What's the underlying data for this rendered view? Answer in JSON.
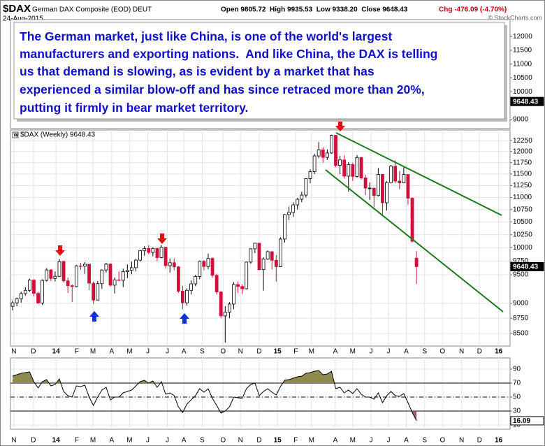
{
  "header": {
    "symbol": "$DAX",
    "name": "German DAX Composite (EOD) DEUT",
    "date": "24-Aug-2015",
    "ohlc": "Open 9805.72  High 9935.53  Low 9338.20  Close 9648.43",
    "change": "Chg -476.09 (-4.70%)",
    "copyright": "© StockCharts.com"
  },
  "annotation": [
    "The German market, just like China, is one of the world's largest",
    "manufacturers and exporting nations.  And like China, the DAX is telling",
    "us that demand is slowing, as is evident by a market that has",
    "experienced a similar blow-off and has since retraced more than 20%,",
    "putting it firmly in bear market territory."
  ],
  "chart_data": [
    {
      "type": "candlestick",
      "legend": "$DAX (Weekly) 9648.43",
      "ylog": true,
      "grid": true,
      "up_color": "#ffffff",
      "down_color": "#d0103a",
      "ylim": [
        8300,
        12500
      ],
      "yticks": [
        8500,
        8750,
        9000,
        9500,
        9750,
        10000,
        10250,
        10500,
        10750,
        11000,
        11250,
        11500,
        11750,
        12000,
        12250
      ],
      "xlim": [
        -0.5,
        117
      ],
      "xticks": [
        {
          "value": 0.3,
          "label": "N"
        },
        {
          "value": 4.9,
          "label": "D"
        },
        {
          "value": 10.2,
          "label": "14"
        },
        {
          "value": 15.1,
          "label": "F"
        },
        {
          "value": 18.9,
          "label": "M"
        },
        {
          "value": 23.3,
          "label": "A"
        },
        {
          "value": 27.5,
          "label": "M"
        },
        {
          "value": 31.8,
          "label": "J"
        },
        {
          "value": 36.4,
          "label": "J"
        },
        {
          "value": 40.3,
          "label": "A"
        },
        {
          "value": 44.6,
          "label": "S"
        },
        {
          "value": 49.5,
          "label": "O"
        },
        {
          "value": 53.6,
          "label": "N"
        },
        {
          "value": 58,
          "label": "D"
        },
        {
          "value": 62.3,
          "label": "15"
        },
        {
          "value": 66.6,
          "label": "F"
        },
        {
          "value": 70.3,
          "label": "M"
        },
        {
          "value": 75.9,
          "label": "A"
        },
        {
          "value": 80,
          "label": "M"
        },
        {
          "value": 84.3,
          "label": "J"
        },
        {
          "value": 88.4,
          "label": "J"
        },
        {
          "value": 92.6,
          "label": "A"
        },
        {
          "value": 96.9,
          "label": "S"
        },
        {
          "value": 101.1,
          "label": "O"
        },
        {
          "value": 105.6,
          "label": "N"
        },
        {
          "value": 109.8,
          "label": "D"
        },
        {
          "value": 114.3,
          "label": "16"
        }
      ],
      "ohlc": [
        [
          8950,
          9050,
          8880,
          9009
        ],
        [
          9009,
          9100,
          8950,
          9078
        ],
        [
          9078,
          9200,
          9010,
          9168
        ],
        [
          9168,
          9280,
          9130,
          9225
        ],
        [
          9225,
          9430,
          9200,
          9405
        ],
        [
          9405,
          9420,
          9120,
          9172
        ],
        [
          9172,
          9200,
          8990,
          9006
        ],
        [
          9006,
          9420,
          8970,
          9400
        ],
        [
          9400,
          9620,
          9380,
          9589
        ],
        [
          9589,
          9600,
          9390,
          9435
        ],
        [
          9435,
          9560,
          9380,
          9473
        ],
        [
          9473,
          9790,
          9460,
          9742
        ],
        [
          9742,
          9760,
          9360,
          9392
        ],
        [
          9392,
          9450,
          9180,
          9306
        ],
        [
          9306,
          9330,
          9020,
          9289
        ],
        [
          9289,
          9680,
          9280,
          9662
        ],
        [
          9662,
          9720,
          9590,
          9656
        ],
        [
          9656,
          9730,
          9520,
          9692
        ],
        [
          9692,
          9700,
          9230,
          9350
        ],
        [
          9350,
          9380,
          8990,
          9056
        ],
        [
          9056,
          9390,
          9050,
          9342
        ],
        [
          9342,
          9600,
          9250,
          9587
        ],
        [
          9587,
          9720,
          9540,
          9695
        ],
        [
          9695,
          9710,
          9290,
          9315
        ],
        [
          9315,
          9450,
          9170,
          9409
        ],
        [
          9409,
          9560,
          9390,
          9401
        ],
        [
          9401,
          9610,
          9280,
          9556
        ],
        [
          9556,
          9690,
          9440,
          9581
        ],
        [
          9581,
          9740,
          9510,
          9629
        ],
        [
          9629,
          9790,
          9560,
          9768
        ],
        [
          9768,
          9960,
          9740,
          9943
        ],
        [
          9943,
          10030,
          9850,
          9987
        ],
        [
          9987,
          10050,
          9880,
          9912
        ],
        [
          9912,
          10010,
          9840,
          9987
        ],
        [
          9987,
          10000,
          9750,
          9815
        ],
        [
          9815,
          10050,
          9800,
          10009
        ],
        [
          10009,
          10020,
          9610,
          9666
        ],
        [
          9666,
          9800,
          9540,
          9720
        ],
        [
          9720,
          9800,
          9580,
          9644
        ],
        [
          9644,
          9660,
          9180,
          9210
        ],
        [
          9210,
          9300,
          8900,
          9009
        ],
        [
          9009,
          9260,
          8960,
          9225
        ],
        [
          9225,
          9400,
          9150,
          9339
        ],
        [
          9339,
          9500,
          9300,
          9470
        ],
        [
          9470,
          9760,
          9420,
          9747
        ],
        [
          9747,
          9770,
          9580,
          9651
        ],
        [
          9651,
          9890,
          9600,
          9799
        ],
        [
          9799,
          9820,
          9450,
          9490
        ],
        [
          9490,
          9520,
          9150,
          9195
        ],
        [
          9195,
          9210,
          8750,
          8788
        ],
        [
          8788,
          8950,
          8355,
          8850
        ],
        [
          8850,
          9020,
          8750,
          8988
        ],
        [
          8988,
          9370,
          8900,
          9326
        ],
        [
          9326,
          9380,
          9180,
          9291
        ],
        [
          9291,
          9330,
          9160,
          9252
        ],
        [
          9252,
          9740,
          9240,
          9732
        ],
        [
          9732,
          9990,
          9700,
          9980
        ],
        [
          9980,
          10090,
          9900,
          10087
        ],
        [
          10087,
          10090,
          9580,
          9594
        ],
        [
          9594,
          9820,
          9220,
          9787
        ],
        [
          9787,
          9950,
          9770,
          9927
        ],
        [
          9927,
          9930,
          9600,
          9765
        ],
        [
          9765,
          9860,
          9380,
          9648
        ],
        [
          9648,
          10200,
          9640,
          10167
        ],
        [
          10167,
          10660,
          10100,
          10649
        ],
        [
          10649,
          10810,
          10540,
          10694
        ],
        [
          10694,
          10900,
          10600,
          10846
        ],
        [
          10846,
          10990,
          10750,
          10963
        ],
        [
          10963,
          11120,
          10900,
          11050
        ],
        [
          11050,
          11410,
          11000,
          11402
        ],
        [
          11402,
          11600,
          11300,
          11551
        ],
        [
          11551,
          11950,
          11500,
          11901
        ],
        [
          11901,
          12220,
          11850,
          12039
        ],
        [
          12039,
          12100,
          11750,
          11868
        ],
        [
          11868,
          12050,
          11810,
          11967
        ],
        [
          11967,
          12390,
          11950,
          12375
        ],
        [
          12375,
          12380,
          11650,
          11689
        ],
        [
          11689,
          11900,
          11500,
          11811
        ],
        [
          11811,
          11920,
          11400,
          11454
        ],
        [
          11454,
          11760,
          11120,
          11709
        ],
        [
          11709,
          11750,
          11350,
          11447
        ],
        [
          11447,
          11920,
          11420,
          11865
        ],
        [
          11865,
          11880,
          11380,
          11414
        ],
        [
          11414,
          11480,
          11050,
          11197
        ],
        [
          11197,
          11320,
          10950,
          11197
        ],
        [
          11197,
          11200,
          10800,
          11040
        ],
        [
          11040,
          11630,
          11020,
          11492
        ],
        [
          11492,
          11500,
          10650,
          10890
        ],
        [
          10890,
          11350,
          10730,
          11316
        ],
        [
          11316,
          11700,
          11300,
          11673
        ],
        [
          11673,
          11800,
          11300,
          11347
        ],
        [
          11347,
          11560,
          11180,
          11308
        ],
        [
          11308,
          11670,
          11300,
          11490
        ],
        [
          11490,
          11500,
          10850,
          10985
        ],
        [
          10985,
          11000,
          10100,
          10124
        ],
        [
          9805.72,
          9935.53,
          9338.2,
          9648.43
        ]
      ]
    },
    {
      "type": "line",
      "color": "#000000",
      "over_color": "#8f8a4e",
      "under_color": "#9a5a7a",
      "ylim": [
        4,
        106
      ],
      "yticks": [
        10,
        30,
        50,
        70,
        90
      ],
      "bands": [
        30,
        70
      ],
      "midline": 50,
      "grid": true,
      "xlim": [
        -0.5,
        117
      ],
      "xticks": [
        {
          "value": 0.3,
          "label": "N"
        },
        {
          "value": 4.9,
          "label": "D"
        },
        {
          "value": 10.2,
          "label": "14"
        },
        {
          "value": 15.1,
          "label": "F"
        },
        {
          "value": 18.9,
          "label": "M"
        },
        {
          "value": 23.3,
          "label": "A"
        },
        {
          "value": 27.5,
          "label": "M"
        },
        {
          "value": 31.8,
          "label": "J"
        },
        {
          "value": 36.4,
          "label": "J"
        },
        {
          "value": 40.3,
          "label": "A"
        },
        {
          "value": 44.6,
          "label": "S"
        },
        {
          "value": 49.5,
          "label": "O"
        },
        {
          "value": 53.6,
          "label": "N"
        },
        {
          "value": 58,
          "label": "D"
        },
        {
          "value": 62.3,
          "label": "15"
        },
        {
          "value": 66.6,
          "label": "F"
        },
        {
          "value": 70.3,
          "label": "M"
        },
        {
          "value": 75.9,
          "label": "A"
        },
        {
          "value": 80,
          "label": "M"
        },
        {
          "value": 84.3,
          "label": "J"
        },
        {
          "value": 88.4,
          "label": "J"
        },
        {
          "value": 92.6,
          "label": "A"
        },
        {
          "value": 96.9,
          "label": "S"
        },
        {
          "value": 101.1,
          "label": "O"
        },
        {
          "value": 105.6,
          "label": "N"
        },
        {
          "value": 109.8,
          "label": "D"
        },
        {
          "value": 114.3,
          "label": "16"
        }
      ],
      "values": [
        80,
        82,
        84,
        85,
        86,
        72,
        63,
        72,
        75,
        66,
        68,
        76,
        58,
        52,
        50,
        66,
        65,
        67,
        50,
        38,
        50,
        60,
        64,
        46,
        50,
        50,
        56,
        58,
        60,
        66,
        72,
        74,
        70,
        73,
        64,
        72,
        54,
        56,
        52,
        36,
        28,
        40,
        46,
        52,
        62,
        57,
        62,
        48,
        38,
        27,
        30,
        36,
        50,
        49,
        48,
        62,
        68,
        70,
        52,
        58,
        62,
        57,
        53,
        65,
        74,
        75,
        77,
        79,
        80,
        84,
        85,
        87,
        88,
        82,
        83,
        87,
        62,
        64,
        56,
        60,
        55,
        62,
        54,
        50,
        50,
        47,
        56,
        42,
        52,
        58,
        52,
        51,
        55,
        42,
        28,
        16.09
      ]
    },
    {
      "type": "price-scale",
      "ylim": [
        8667,
        12611
      ],
      "yticks": [
        9000,
        10000,
        10500,
        11000,
        11500,
        12000
      ]
    }
  ]
}
